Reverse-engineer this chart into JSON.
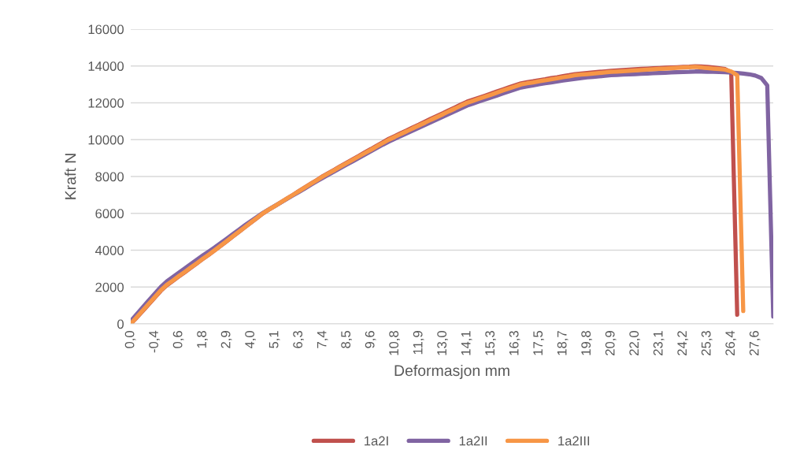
{
  "chart_data": {
    "type": "line",
    "xlabel": "Deformasjon mm",
    "ylabel": "Kraft N",
    "categories": [
      "0,0",
      null,
      null,
      null,
      "-0,4",
      null,
      null,
      null,
      "0,6",
      null,
      null,
      null,
      "1,8",
      null,
      null,
      null,
      "2,9",
      null,
      null,
      null,
      "4,0",
      null,
      null,
      null,
      "5,1",
      null,
      null,
      null,
      "6,3",
      null,
      null,
      null,
      "7,4",
      null,
      null,
      null,
      "8,5",
      null,
      null,
      null,
      "9,6",
      null,
      null,
      null,
      "10,8",
      null,
      null,
      null,
      "11,9",
      null,
      null,
      null,
      "13,0",
      null,
      null,
      null,
      "14,1",
      null,
      null,
      null,
      "15,3",
      null,
      null,
      null,
      "16,3",
      null,
      null,
      null,
      "17,5",
      null,
      null,
      null,
      "18,7",
      null,
      null,
      null,
      "19,8",
      null,
      null,
      null,
      "20,9",
      null,
      null,
      null,
      "22,0",
      null,
      null,
      null,
      "23,1",
      null,
      null,
      null,
      "24,2",
      null,
      null,
      null,
      "25,3",
      null,
      null,
      null,
      "26,4",
      null,
      null,
      null,
      "27,6",
      null,
      null,
      null
    ],
    "series": [
      {
        "name": "1a2I",
        "color": "#c0504d",
        "values": [
          0,
          340,
          700,
          1060,
          1420,
          1790,
          2090,
          2330,
          2570,
          2800,
          3040,
          3280,
          3520,
          3750,
          3990,
          4240,
          4490,
          4740,
          4990,
          5240,
          5490,
          5740,
          5990,
          6200,
          6400,
          6600,
          6800,
          7000,
          7210,
          7410,
          7610,
          7810,
          8020,
          8200,
          8380,
          8580,
          8760,
          8940,
          9120,
          9310,
          9490,
          9680,
          9860,
          10050,
          10200,
          10360,
          10510,
          10670,
          10820,
          10980,
          11140,
          11290,
          11440,
          11600,
          11750,
          11910,
          12060,
          12170,
          12280,
          12390,
          12500,
          12620,
          12730,
          12840,
          12950,
          13060,
          13120,
          13170,
          13230,
          13280,
          13340,
          13390,
          13450,
          13500,
          13560,
          13590,
          13620,
          13650,
          13680,
          13710,
          13740,
          13760,
          13780,
          13800,
          13820,
          13840,
          13860,
          13875,
          13890,
          13905,
          13920,
          13935,
          13950,
          13960,
          13980,
          13970,
          13950,
          13920,
          13880,
          13830,
          13650,
          500,
          null,
          null,
          null,
          null,
          null,
          null
        ]
      },
      {
        "name": "1a2II",
        "color": "#8064a2",
        "values": [
          150,
          520,
          900,
          1270,
          1640,
          2000,
          2300,
          2540,
          2780,
          3010,
          3250,
          3480,
          3710,
          3930,
          4150,
          4390,
          4630,
          4870,
          5110,
          5350,
          5580,
          5800,
          6020,
          6210,
          6400,
          6590,
          6780,
          6970,
          7160,
          7350,
          7550,
          7740,
          7930,
          8110,
          8290,
          8470,
          8650,
          8830,
          9010,
          9190,
          9370,
          9550,
          9730,
          9900,
          10050,
          10200,
          10350,
          10500,
          10650,
          10800,
          10950,
          11100,
          11250,
          11400,
          11550,
          11700,
          11850,
          11960,
          12070,
          12180,
          12290,
          12400,
          12510,
          12620,
          12730,
          12830,
          12890,
          12950,
          13010,
          13060,
          13110,
          13160,
          13210,
          13260,
          13300,
          13340,
          13380,
          13410,
          13440,
          13470,
          13500,
          13515,
          13530,
          13545,
          13560,
          13575,
          13590,
          13605,
          13620,
          13635,
          13650,
          13660,
          13670,
          13680,
          13700,
          13700,
          13690,
          13680,
          13670,
          13660,
          13640,
          13620,
          13590,
          13550,
          13480,
          13350,
          12950,
          400
        ]
      },
      {
        "name": "1a2III",
        "color": "#f79646",
        "values": [
          0,
          360,
          730,
          1090,
          1450,
          1820,
          2120,
          2350,
          2590,
          2820,
          3060,
          3290,
          3530,
          3760,
          4000,
          4250,
          4500,
          4750,
          5000,
          5250,
          5500,
          5750,
          6000,
          6200,
          6400,
          6600,
          6800,
          7000,
          7200,
          7400,
          7600,
          7800,
          8000,
          8180,
          8360,
          8550,
          8730,
          8910,
          9090,
          9270,
          9450,
          9640,
          9820,
          10000,
          10150,
          10310,
          10460,
          10620,
          10770,
          10920,
          11080,
          11230,
          11380,
          11540,
          11690,
          11850,
          12000,
          12110,
          12220,
          12330,
          12440,
          12560,
          12670,
          12780,
          12890,
          13000,
          13060,
          13110,
          13170,
          13220,
          13280,
          13330,
          13390,
          13440,
          13500,
          13530,
          13560,
          13590,
          13620,
          13650,
          13680,
          13700,
          13720,
          13740,
          13760,
          13780,
          13800,
          13820,
          13840,
          13860,
          13880,
          13900,
          13915,
          13930,
          13950,
          13920,
          13890,
          13860,
          13830,
          13800,
          13700,
          13500,
          700,
          null,
          null,
          null,
          null,
          null
        ]
      }
    ],
    "ylim": [
      0,
      16000
    ],
    "yticks": [
      0,
      2000,
      4000,
      6000,
      8000,
      10000,
      12000,
      14000,
      16000
    ],
    "grid": "y",
    "legend": "bottom",
    "marker": "none",
    "line_style": "solid"
  }
}
